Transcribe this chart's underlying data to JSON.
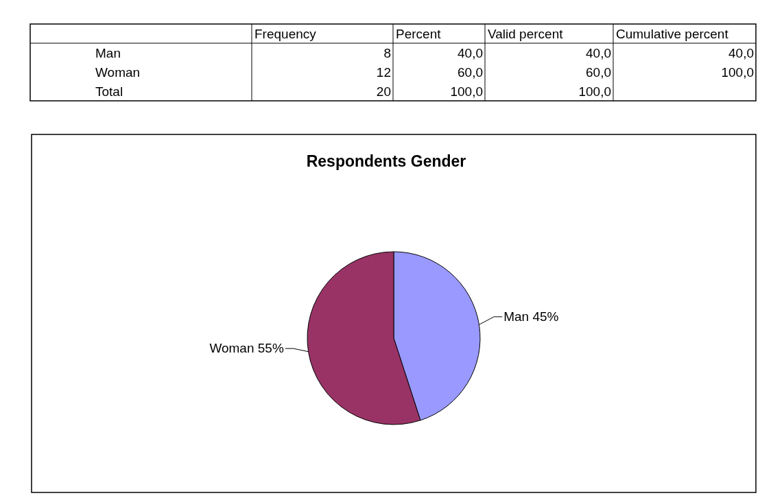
{
  "chart_data": [
    {
      "type": "other",
      "categories": [
        "Man",
        "Woman",
        "Total"
      ],
      "series": [
        {
          "name": "Frequency",
          "values": [
            8,
            12,
            20
          ],
          "value_labels": [
            "8",
            "12",
            "20"
          ]
        },
        {
          "name": "Percent",
          "values": [
            40,
            60,
            100
          ],
          "value_labels": [
            "40,0",
            "60,0",
            "100,0"
          ]
        },
        {
          "name": "Valid percent",
          "values": [
            40,
            60,
            100
          ],
          "value_labels": [
            "40,0",
            "60,0",
            "100,0"
          ]
        },
        {
          "name": "Cumulative percent",
          "values": [
            40,
            100,
            null
          ],
          "value_labels": [
            "40,0",
            "100,0",
            null
          ]
        }
      ]
    },
    {
      "type": "pie",
      "title": "Respondents Gender",
      "categories": [
        "Man",
        "Woman"
      ],
      "values": [
        45,
        55
      ],
      "value_labels": [
        "45%",
        "55%"
      ],
      "colors": [
        "#9999ff",
        "#993366"
      ]
    }
  ]
}
